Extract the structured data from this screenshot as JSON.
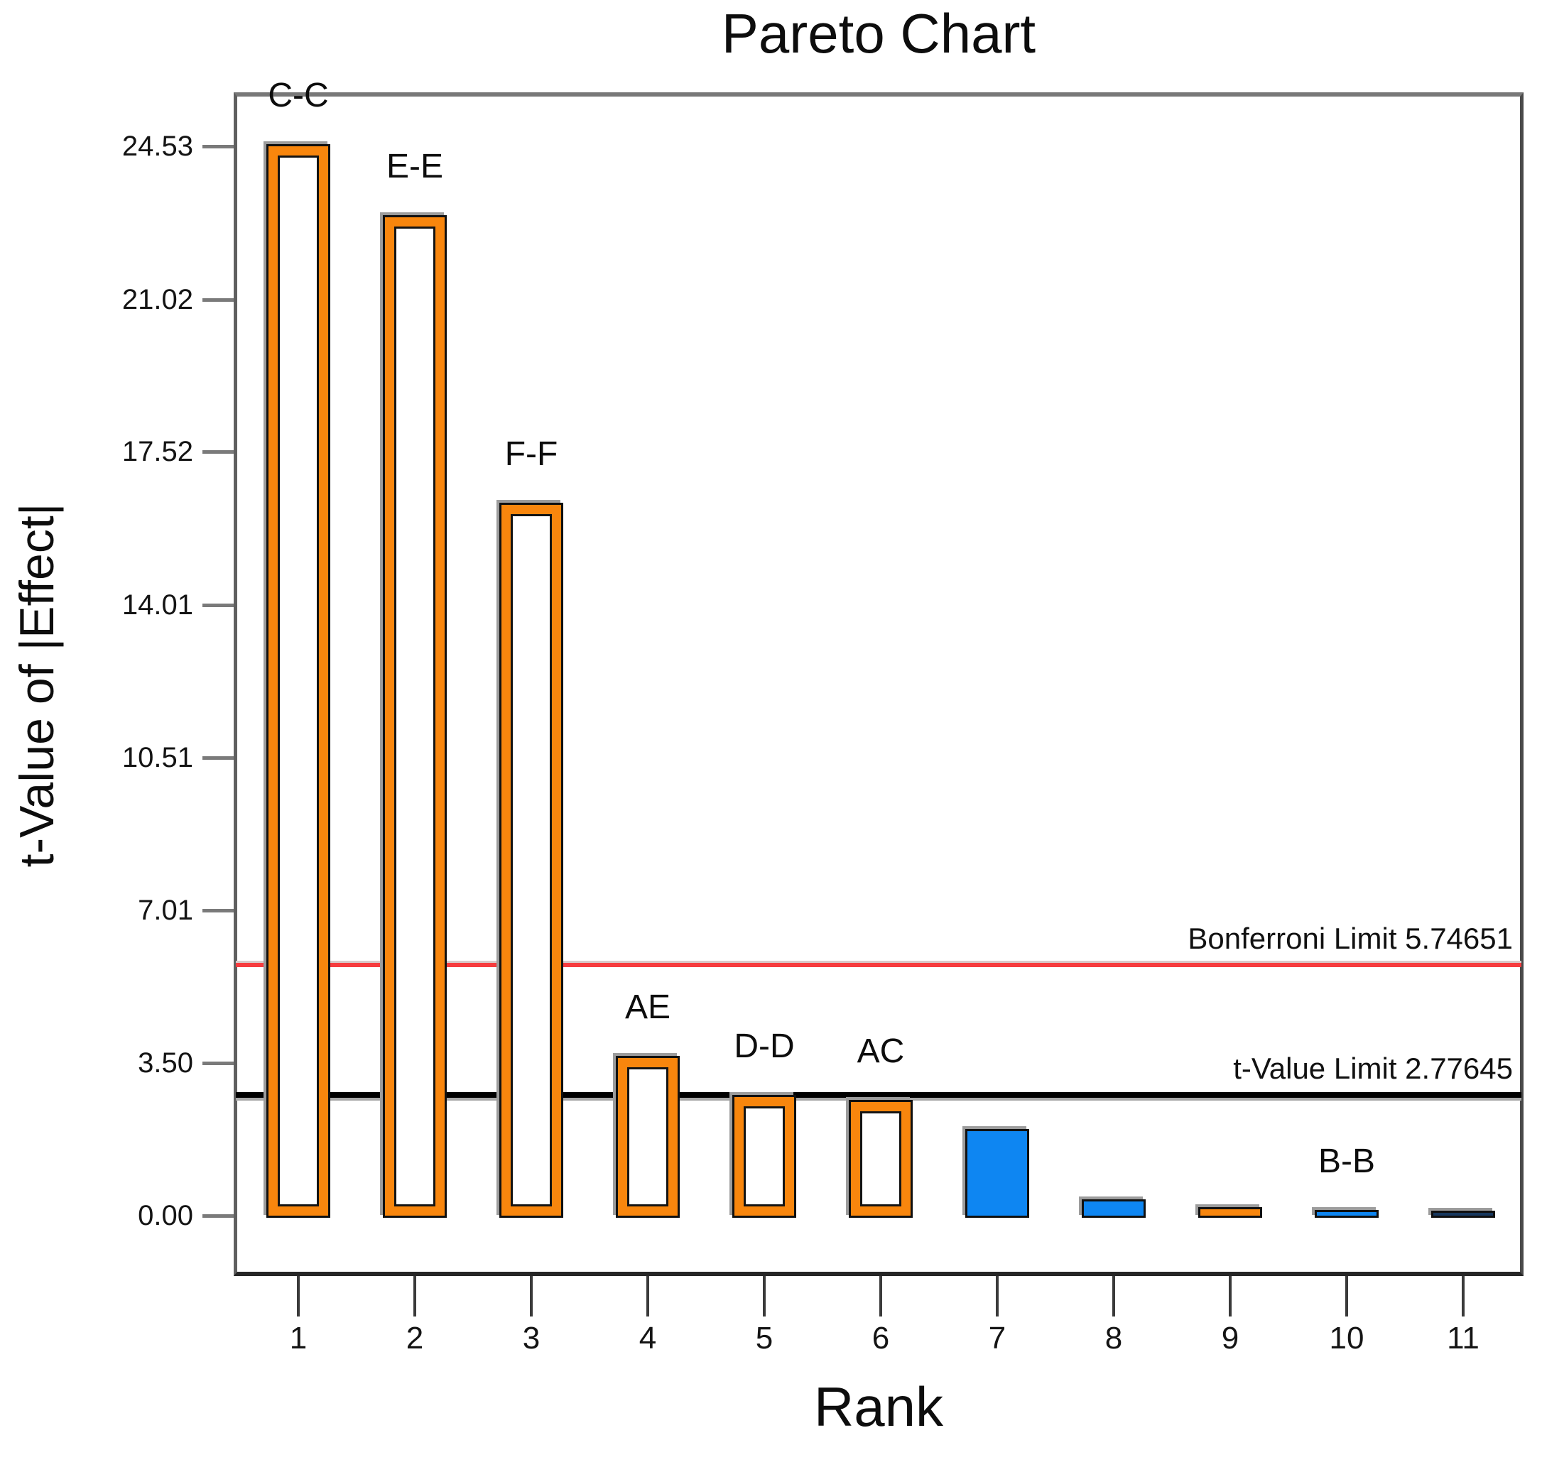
{
  "title": "Pareto Chart",
  "colors": {
    "orange": "#F8860D",
    "blue": "#0E86F2",
    "navy": "#17375E",
    "red_line": "#F63C3F",
    "black_line": "#000000",
    "shadow": "#9C9C9C",
    "frame": "#6E6E6E"
  },
  "chart_data": {
    "type": "bar",
    "title": "Pareto Chart",
    "xlabel": "Rank",
    "ylabel": "t-Value of |Effect|",
    "ylim": [
      0,
      25.8
    ],
    "grid": false,
    "legend": null,
    "y_ticks": [
      {
        "label": "0.00",
        "value": 0.0
      },
      {
        "label": "3.50",
        "value": 3.5
      },
      {
        "label": "7.01",
        "value": 7.01
      },
      {
        "label": "10.51",
        "value": 10.51
      },
      {
        "label": "14.01",
        "value": 14.01
      },
      {
        "label": "17.52",
        "value": 17.52
      },
      {
        "label": "21.02",
        "value": 21.02
      },
      {
        "label": "24.53",
        "value": 24.53
      }
    ],
    "x_ticks": [
      "1",
      "2",
      "3",
      "4",
      "5",
      "6",
      "7",
      "8",
      "9",
      "10",
      "11"
    ],
    "bars": [
      {
        "rank": 1,
        "label": "C-C",
        "value": 24.53,
        "style": "hollow-orange"
      },
      {
        "rank": 2,
        "label": "E-E",
        "value": 22.9,
        "style": "hollow-orange"
      },
      {
        "rank": 3,
        "label": "F-F",
        "value": 16.3,
        "style": "hollow-orange"
      },
      {
        "rank": 4,
        "label": "AE",
        "value": 3.62,
        "style": "hollow-orange"
      },
      {
        "rank": 5,
        "label": "D-D",
        "value": 2.72,
        "style": "hollow-orange"
      },
      {
        "rank": 6,
        "label": "AC",
        "value": 2.61,
        "style": "hollow-orange"
      },
      {
        "rank": 7,
        "label": "",
        "value": 1.94,
        "style": "solid-blue"
      },
      {
        "rank": 8,
        "label": "",
        "value": 0.33,
        "style": "solid-blue"
      },
      {
        "rank": 9,
        "label": "",
        "value": 0.15,
        "style": "solid-orange"
      },
      {
        "rank": 10,
        "label": "B-B",
        "value": 0.08,
        "style": "solid-blue"
      },
      {
        "rank": 11,
        "label": "",
        "value": 0.06,
        "style": "solid-navy"
      }
    ],
    "limit_lines": [
      {
        "name": "bonferroni-limit",
        "label": "Bonferroni Limit 5.74651",
        "value": 5.74651,
        "color": "#F63C3F"
      },
      {
        "name": "t-value-limit",
        "label": "t-Value Limit 2.77645",
        "value": 2.77645,
        "color": "#000000"
      }
    ]
  }
}
